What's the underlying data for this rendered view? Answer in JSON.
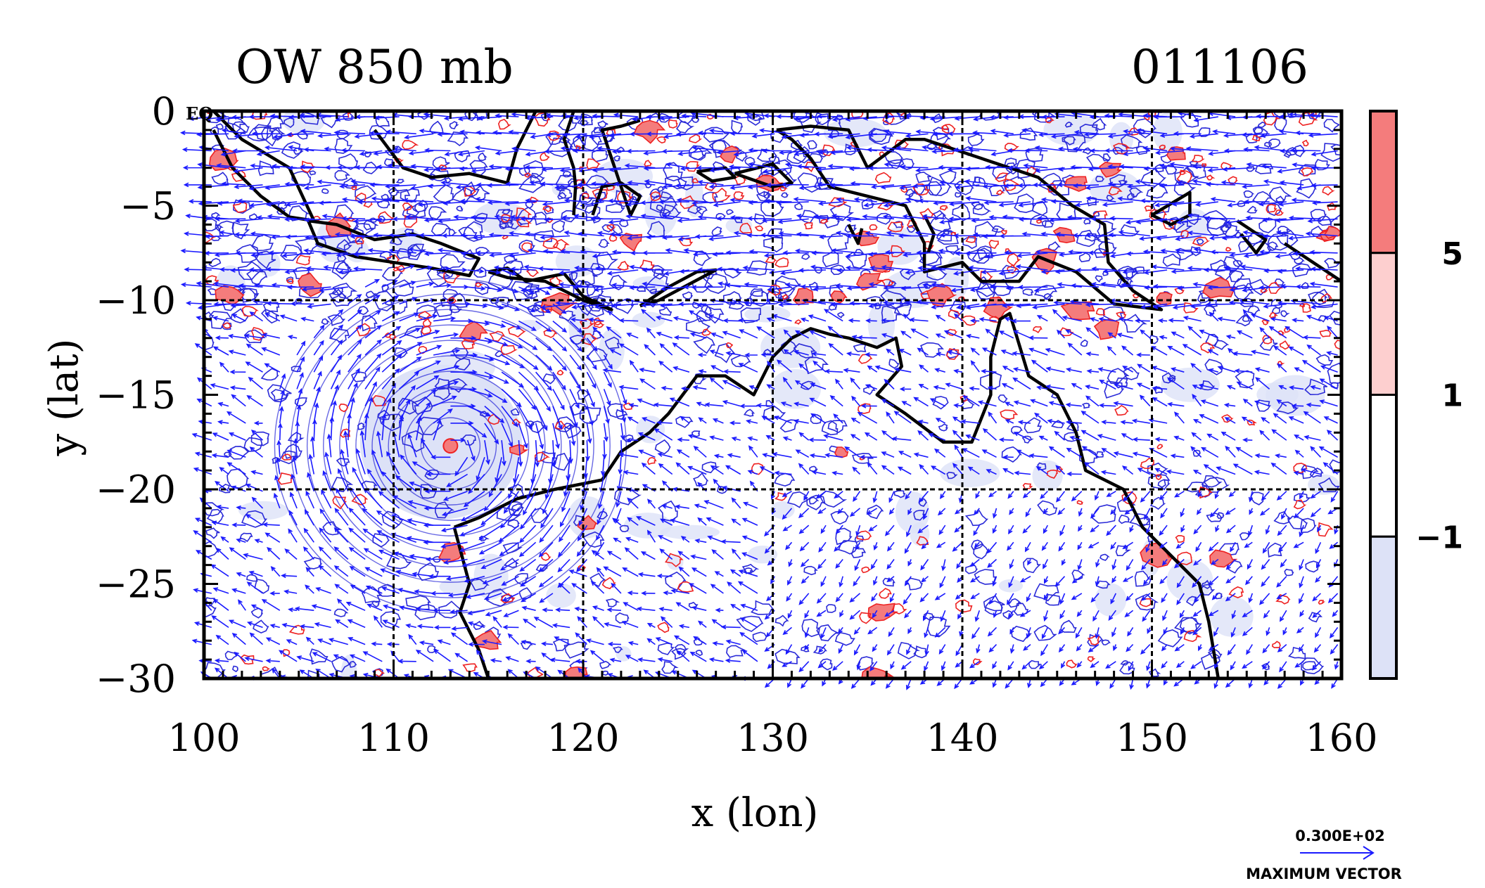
{
  "chart_data": {
    "type": "contour-vector-map",
    "title": "OW 850 mb",
    "date_label": "011106",
    "axis_suffix": "EQ",
    "xlabel": "x (lon)",
    "ylabel": "y (lat)",
    "xlim": [
      100,
      160
    ],
    "ylim": [
      -30,
      0
    ],
    "x_ticks": [
      100,
      110,
      120,
      130,
      140,
      150,
      160
    ],
    "y_ticks": [
      0,
      -5,
      -10,
      -15,
      -20,
      -25,
      -30
    ],
    "y_tick_labels": [
      "0",
      "−5",
      "−10",
      "−15",
      "−20",
      "−25",
      "−30"
    ],
    "grid": true,
    "grid_lon": [
      110,
      120,
      130,
      140,
      150
    ],
    "grid_lat": [
      -10,
      -20
    ],
    "colorbar": {
      "levels": [
        -1,
        1,
        5
      ],
      "labels": [
        "−1",
        "1",
        "5"
      ],
      "colors": [
        "#dde2f7",
        "#ffffff",
        "#fdcfcf",
        "#f47c7c"
      ]
    },
    "vector_key": {
      "magnitude": "0.300E+02",
      "label": "MAXIMUM VECTOR",
      "color": "#1a1aff"
    },
    "features": {
      "cyclone_center": {
        "lon": 113,
        "lat": -17.7
      },
      "vortex_shading_center": {
        "lon": 112.5,
        "lat": -17.5
      }
    },
    "colors": {
      "positive_contour": "#ee2222",
      "negative_contour": "#2a2ad8",
      "vector": "#1a1aff",
      "coastline": "#000000"
    }
  }
}
